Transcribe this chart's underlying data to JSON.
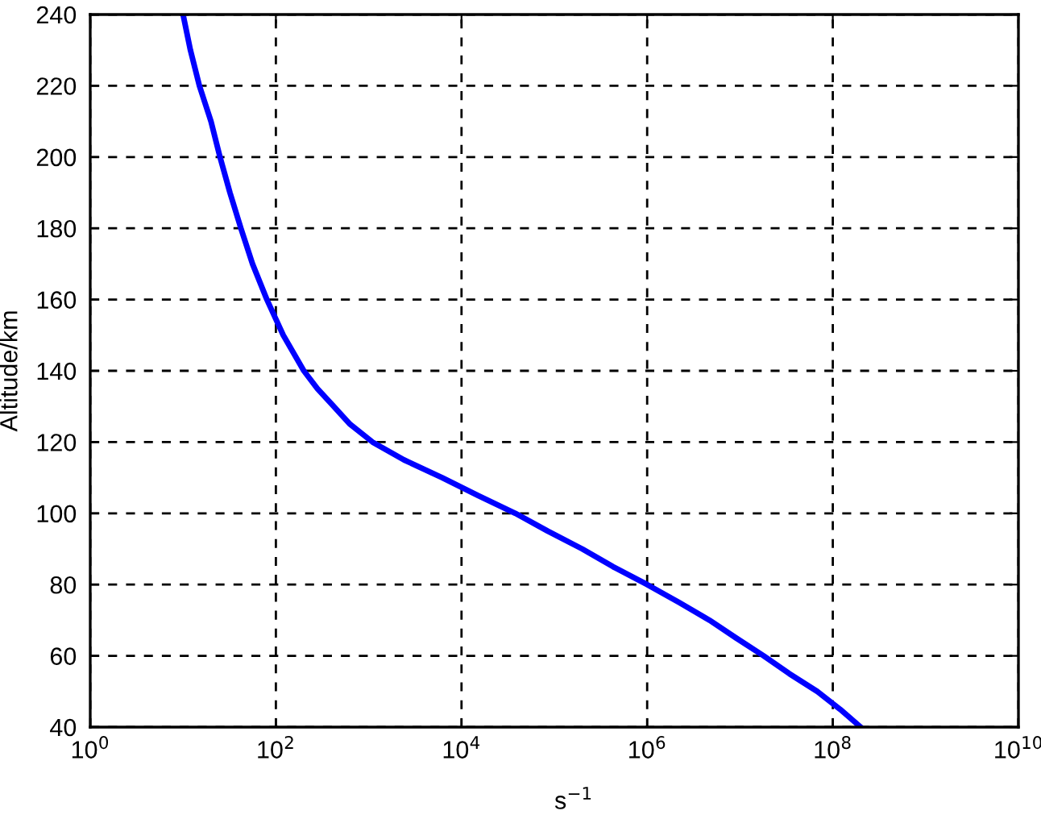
{
  "chart_data": {
    "type": "line",
    "xlabel": "s$^{−1}$",
    "ylabel": "Altitude/km",
    "log": "x",
    "grid": true,
    "color": "#0000ff",
    "x": [
      10,
      12,
      15,
      20,
      25,
      32,
      42,
      56,
      80,
      120,
      200,
      280,
      420,
      630,
      1100,
      2400,
      6200,
      15000,
      38000,
      85000,
      200000,
      430000,
      1000000,
      2200000,
      4700000,
      9100000,
      18000000,
      34000000,
      68000000,
      120000000,
      200000000
    ],
    "values": [
      240,
      230,
      220,
      210,
      200,
      190,
      180,
      170,
      160,
      150,
      140,
      135,
      130,
      125,
      120,
      115,
      110,
      105,
      100,
      95,
      90,
      85,
      80,
      75,
      70,
      65,
      60,
      55,
      50,
      45,
      40
    ],
    "xlim": [
      1,
      10000000000
    ],
    "ylim": [
      40,
      240
    ],
    "xticks": [
      {
        "value": 1,
        "label": "10$^{0}$"
      },
      {
        "value": 100,
        "label": "10$^{2}$"
      },
      {
        "value": 10000,
        "label": "10$^{4}$"
      },
      {
        "value": 1000000,
        "label": "10$^{6}$"
      },
      {
        "value": 100000000,
        "label": "10$^{8}$"
      },
      {
        "value": 10000000000,
        "label": "10$^{10}$"
      }
    ],
    "yticks": [
      40,
      60,
      80,
      100,
      120,
      140,
      160,
      180,
      200,
      220,
      240
    ]
  }
}
